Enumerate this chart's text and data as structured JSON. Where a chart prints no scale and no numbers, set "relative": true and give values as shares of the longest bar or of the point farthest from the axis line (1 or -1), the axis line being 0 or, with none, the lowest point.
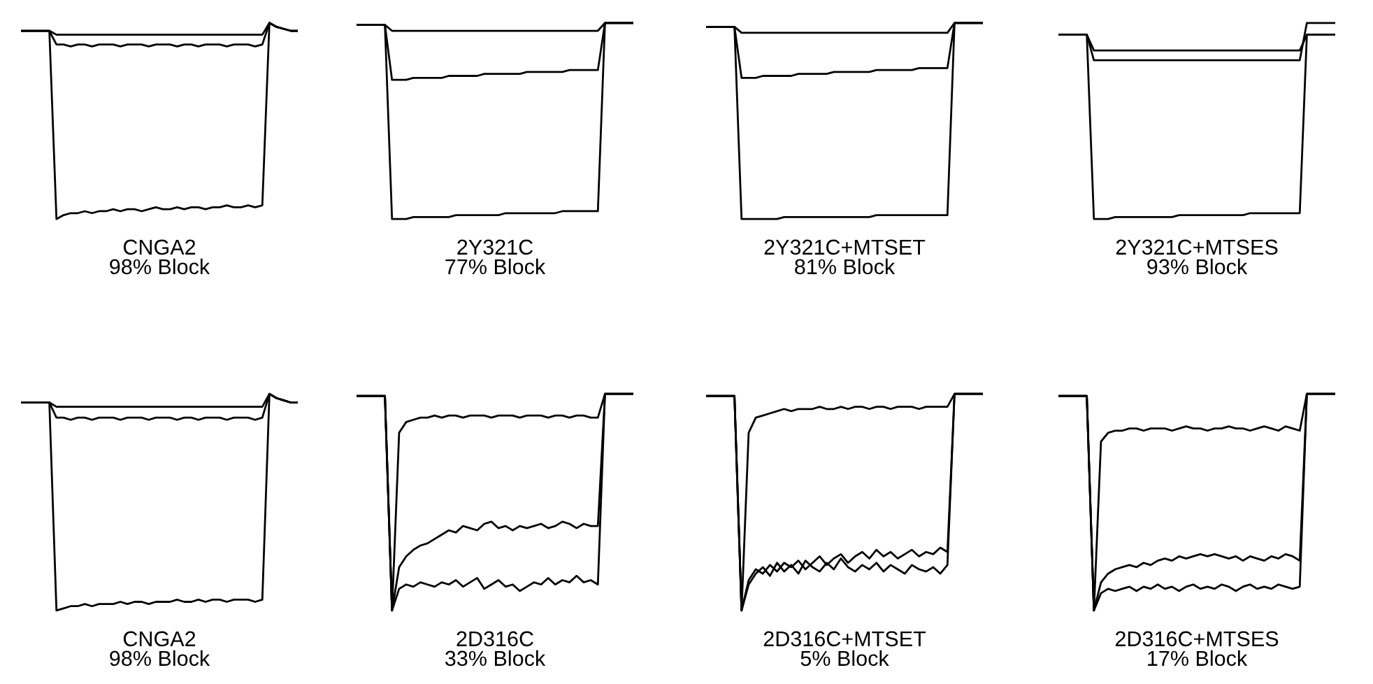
{
  "chart_data": [
    {
      "type": "line",
      "relative": true,
      "title": "CNGA2",
      "subtitle": "98% Block",
      "categories": [
        null,
        null,
        null,
        null,
        null,
        null,
        null,
        null,
        null,
        null,
        null,
        null,
        null,
        null,
        null,
        null,
        null,
        null,
        null,
        null,
        null,
        null,
        null,
        null,
        null,
        null,
        null,
        null,
        null,
        null,
        null,
        null,
        null,
        null,
        null,
        null,
        null,
        null,
        null,
        null
      ],
      "series": [
        {
          "color": "#000000",
          "values": [
            0.96,
            0.96,
            0.96,
            0.96,
            0.96,
            0.94,
            0.94,
            0.94,
            0.94,
            0.94,
            0.94,
            0.94,
            0.94,
            0.94,
            0.94,
            0.94,
            0.94,
            0.94,
            0.94,
            0.94,
            0.94,
            0.94,
            0.94,
            0.94,
            0.94,
            0.94,
            0.94,
            0.94,
            0.94,
            0.94,
            0.94,
            0.94,
            0.94,
            0.94,
            0.94,
            1.0,
            0.98,
            0.97,
            0.96,
            0.96
          ]
        },
        {
          "color": "#000000",
          "values": [
            0.96,
            0.96,
            0.96,
            0.96,
            0.96,
            0.89,
            0.89,
            0.88,
            0.89,
            0.89,
            0.88,
            0.89,
            0.89,
            0.89,
            0.88,
            0.89,
            0.89,
            0.89,
            0.88,
            0.89,
            0.89,
            0.89,
            0.88,
            0.89,
            0.89,
            0.88,
            0.89,
            0.89,
            0.89,
            0.88,
            0.89,
            0.89,
            0.89,
            0.88,
            0.89,
            1.0,
            0.98,
            0.97,
            0.96,
            0.96
          ]
        },
        {
          "color": "#000000",
          "values": [
            0.96,
            0.96,
            0.96,
            0.96,
            0.96,
            0.0,
            0.02,
            0.03,
            0.03,
            0.04,
            0.03,
            0.04,
            0.04,
            0.05,
            0.04,
            0.05,
            0.05,
            0.04,
            0.05,
            0.06,
            0.05,
            0.05,
            0.06,
            0.05,
            0.06,
            0.06,
            0.05,
            0.06,
            0.06,
            0.07,
            0.06,
            0.06,
            0.07,
            0.06,
            0.07,
            1.0,
            0.98,
            0.97,
            0.96,
            0.96
          ]
        }
      ]
    },
    {
      "type": "line",
      "relative": true,
      "title": "2Y321C",
      "subtitle": "77% Block",
      "categories": [
        null,
        null,
        null,
        null,
        null,
        null,
        null,
        null,
        null,
        null,
        null,
        null,
        null,
        null,
        null,
        null,
        null,
        null,
        null,
        null,
        null,
        null,
        null,
        null,
        null,
        null,
        null,
        null,
        null,
        null,
        null,
        null,
        null,
        null,
        null,
        null,
        null,
        null,
        null,
        null
      ],
      "series": [
        {
          "color": "#000000",
          "values": [
            0.99,
            0.99,
            0.99,
            0.99,
            0.99,
            0.96,
            0.96,
            0.96,
            0.96,
            0.96,
            0.96,
            0.96,
            0.96,
            0.96,
            0.96,
            0.96,
            0.96,
            0.96,
            0.96,
            0.96,
            0.96,
            0.96,
            0.96,
            0.96,
            0.96,
            0.96,
            0.96,
            0.96,
            0.96,
            0.96,
            0.96,
            0.96,
            0.96,
            0.96,
            0.96,
            1.0,
            1.0,
            1.0,
            1.0,
            1.0
          ]
        },
        {
          "color": "#000000",
          "values": [
            0.99,
            0.99,
            0.99,
            0.99,
            0.99,
            0.71,
            0.71,
            0.71,
            0.72,
            0.72,
            0.72,
            0.72,
            0.72,
            0.73,
            0.73,
            0.73,
            0.73,
            0.73,
            0.74,
            0.74,
            0.74,
            0.74,
            0.74,
            0.74,
            0.75,
            0.75,
            0.75,
            0.75,
            0.75,
            0.75,
            0.76,
            0.76,
            0.76,
            0.76,
            0.76,
            1.0,
            1.0,
            1.0,
            1.0,
            1.0
          ]
        },
        {
          "color": "#000000",
          "values": [
            0.99,
            0.99,
            0.99,
            0.99,
            0.99,
            0.0,
            0.0,
            0.0,
            0.01,
            0.01,
            0.01,
            0.01,
            0.01,
            0.01,
            0.02,
            0.02,
            0.02,
            0.02,
            0.02,
            0.02,
            0.02,
            0.03,
            0.03,
            0.03,
            0.03,
            0.03,
            0.03,
            0.03,
            0.03,
            0.04,
            0.04,
            0.04,
            0.04,
            0.04,
            0.04,
            1.0,
            1.0,
            1.0,
            1.0,
            1.0
          ]
        }
      ]
    },
    {
      "type": "line",
      "relative": true,
      "title": "2Y321C+MTSET",
      "subtitle": "81% Block",
      "categories": [
        null,
        null,
        null,
        null,
        null,
        null,
        null,
        null,
        null,
        null,
        null,
        null,
        null,
        null,
        null,
        null,
        null,
        null,
        null,
        null,
        null,
        null,
        null,
        null,
        null,
        null,
        null,
        null,
        null,
        null,
        null,
        null,
        null,
        null,
        null,
        null,
        null,
        null,
        null,
        null
      ],
      "series": [
        {
          "color": "#000000",
          "values": [
            0.98,
            0.98,
            0.98,
            0.98,
            0.98,
            0.95,
            0.95,
            0.95,
            0.95,
            0.95,
            0.95,
            0.95,
            0.95,
            0.95,
            0.95,
            0.95,
            0.95,
            0.95,
            0.95,
            0.95,
            0.95,
            0.95,
            0.95,
            0.95,
            0.95,
            0.95,
            0.95,
            0.95,
            0.95,
            0.95,
            0.95,
            0.95,
            0.95,
            0.95,
            0.95,
            1.0,
            1.0,
            1.0,
            1.0,
            1.0
          ]
        },
        {
          "color": "#000000",
          "values": [
            0.98,
            0.98,
            0.98,
            0.98,
            0.98,
            0.72,
            0.72,
            0.72,
            0.73,
            0.73,
            0.73,
            0.73,
            0.73,
            0.74,
            0.74,
            0.74,
            0.74,
            0.74,
            0.75,
            0.75,
            0.75,
            0.75,
            0.75,
            0.75,
            0.76,
            0.76,
            0.76,
            0.76,
            0.76,
            0.76,
            0.77,
            0.77,
            0.77,
            0.77,
            0.77,
            1.0,
            1.0,
            1.0,
            1.0,
            1.0
          ]
        },
        {
          "color": "#000000",
          "values": [
            0.98,
            0.98,
            0.98,
            0.98,
            0.98,
            0.0,
            0.0,
            0.0,
            0.0,
            0.0,
            0.0,
            0.01,
            0.01,
            0.01,
            0.01,
            0.01,
            0.01,
            0.01,
            0.01,
            0.01,
            0.01,
            0.01,
            0.01,
            0.01,
            0.02,
            0.02,
            0.02,
            0.02,
            0.02,
            0.02,
            0.02,
            0.02,
            0.02,
            0.02,
            0.02,
            1.0,
            1.0,
            1.0,
            1.0,
            1.0
          ]
        }
      ]
    },
    {
      "type": "line",
      "relative": true,
      "title": "2Y321C+MTSES",
      "subtitle": "93% Block",
      "categories": [
        null,
        null,
        null,
        null,
        null,
        null,
        null,
        null,
        null,
        null,
        null,
        null,
        null,
        null,
        null,
        null,
        null,
        null,
        null,
        null,
        null,
        null,
        null,
        null,
        null,
        null,
        null,
        null,
        null,
        null,
        null,
        null,
        null,
        null,
        null,
        null,
        null,
        null,
        null,
        null
      ],
      "series": [
        {
          "color": "#000000",
          "values": [
            0.94,
            0.94,
            0.94,
            0.94,
            0.94,
            0.86,
            0.86,
            0.86,
            0.86,
            0.86,
            0.86,
            0.86,
            0.86,
            0.86,
            0.86,
            0.86,
            0.86,
            0.86,
            0.86,
            0.86,
            0.86,
            0.86,
            0.86,
            0.86,
            0.86,
            0.86,
            0.86,
            0.86,
            0.86,
            0.86,
            0.86,
            0.86,
            0.86,
            0.86,
            0.86,
            0.94,
            0.94,
            0.94,
            0.94,
            0.94
          ]
        },
        {
          "color": "#000000",
          "values": [
            0.94,
            0.94,
            0.94,
            0.94,
            0.94,
            0.81,
            0.81,
            0.81,
            0.81,
            0.81,
            0.81,
            0.81,
            0.81,
            0.81,
            0.81,
            0.81,
            0.81,
            0.81,
            0.81,
            0.81,
            0.81,
            0.81,
            0.81,
            0.81,
            0.81,
            0.81,
            0.81,
            0.81,
            0.81,
            0.81,
            0.81,
            0.81,
            0.81,
            0.81,
            0.81,
            1.0,
            1.0,
            1.0,
            1.0,
            1.0
          ]
        },
        {
          "color": "#000000",
          "values": [
            0.94,
            0.94,
            0.94,
            0.94,
            0.94,
            0.0,
            0.0,
            0.0,
            0.01,
            0.01,
            0.01,
            0.01,
            0.01,
            0.01,
            0.01,
            0.01,
            0.01,
            0.02,
            0.02,
            0.02,
            0.02,
            0.02,
            0.02,
            0.02,
            0.02,
            0.02,
            0.02,
            0.03,
            0.03,
            0.03,
            0.03,
            0.03,
            0.03,
            0.03,
            0.03,
            0.94,
            0.94,
            0.94,
            0.94,
            0.94
          ]
        }
      ]
    },
    {
      "type": "line",
      "relative": true,
      "title": "CNGA2",
      "subtitle": "98% Block",
      "categories": [
        null,
        null,
        null,
        null,
        null,
        null,
        null,
        null,
        null,
        null,
        null,
        null,
        null,
        null,
        null,
        null,
        null,
        null,
        null,
        null,
        null,
        null,
        null,
        null,
        null,
        null,
        null,
        null,
        null,
        null,
        null,
        null,
        null,
        null,
        null,
        null,
        null,
        null,
        null,
        null
      ],
      "series": [
        {
          "color": "#000000",
          "values": [
            0.96,
            0.96,
            0.96,
            0.96,
            0.96,
            0.94,
            0.94,
            0.94,
            0.94,
            0.94,
            0.94,
            0.94,
            0.94,
            0.94,
            0.94,
            0.94,
            0.94,
            0.94,
            0.94,
            0.94,
            0.94,
            0.94,
            0.94,
            0.94,
            0.94,
            0.94,
            0.94,
            0.94,
            0.94,
            0.94,
            0.94,
            0.94,
            0.94,
            0.94,
            0.94,
            1.0,
            0.98,
            0.97,
            0.96,
            0.96
          ]
        },
        {
          "color": "#000000",
          "values": [
            0.96,
            0.96,
            0.96,
            0.96,
            0.96,
            0.89,
            0.89,
            0.88,
            0.89,
            0.89,
            0.88,
            0.89,
            0.89,
            0.89,
            0.88,
            0.89,
            0.89,
            0.89,
            0.88,
            0.89,
            0.89,
            0.89,
            0.88,
            0.89,
            0.89,
            0.88,
            0.89,
            0.89,
            0.89,
            0.88,
            0.89,
            0.89,
            0.89,
            0.88,
            0.89,
            1.0,
            0.98,
            0.97,
            0.96,
            0.96
          ]
        },
        {
          "color": "#000000",
          "values": [
            0.96,
            0.96,
            0.96,
            0.96,
            0.96,
            0.0,
            0.01,
            0.02,
            0.02,
            0.03,
            0.02,
            0.03,
            0.03,
            0.03,
            0.04,
            0.03,
            0.04,
            0.04,
            0.03,
            0.04,
            0.04,
            0.04,
            0.05,
            0.04,
            0.04,
            0.05,
            0.04,
            0.05,
            0.05,
            0.04,
            0.05,
            0.05,
            0.05,
            0.04,
            0.05,
            1.0,
            0.98,
            0.97,
            0.96,
            0.96
          ]
        }
      ]
    },
    {
      "type": "line",
      "relative": true,
      "title": "2D316C",
      "subtitle": "33% Block",
      "categories": [
        null,
        null,
        null,
        null,
        null,
        null,
        null,
        null,
        null,
        null,
        null,
        null,
        null,
        null,
        null,
        null,
        null,
        null,
        null,
        null,
        null,
        null,
        null,
        null,
        null,
        null,
        null,
        null,
        null,
        null,
        null,
        null,
        null,
        null,
        null,
        null,
        null,
        null,
        null,
        null
      ],
      "series": [
        {
          "color": "#000000",
          "values": [
            0.99,
            0.99,
            0.99,
            0.99,
            0.99,
            0.0,
            0.82,
            0.87,
            0.88,
            0.89,
            0.89,
            0.9,
            0.89,
            0.9,
            0.9,
            0.89,
            0.9,
            0.9,
            0.9,
            0.89,
            0.9,
            0.9,
            0.9,
            0.89,
            0.9,
            0.9,
            0.9,
            0.89,
            0.9,
            0.9,
            0.89,
            0.9,
            0.9,
            0.89,
            0.89,
            1.0,
            1.0,
            1.0,
            1.0,
            1.0
          ]
        },
        {
          "color": "#000000",
          "values": [
            0.99,
            0.99,
            0.99,
            0.99,
            0.99,
            0.0,
            0.2,
            0.25,
            0.28,
            0.3,
            0.31,
            0.33,
            0.35,
            0.37,
            0.36,
            0.39,
            0.38,
            0.37,
            0.4,
            0.41,
            0.38,
            0.39,
            0.37,
            0.39,
            0.38,
            0.39,
            0.4,
            0.38,
            0.39,
            0.41,
            0.4,
            0.38,
            0.4,
            0.39,
            0.39,
            1.0,
            1.0,
            1.0,
            1.0,
            1.0
          ]
        },
        {
          "color": "#000000",
          "values": [
            0.99,
            0.99,
            0.99,
            0.99,
            0.99,
            0.0,
            0.1,
            0.12,
            0.11,
            0.13,
            0.12,
            0.11,
            0.13,
            0.12,
            0.14,
            0.11,
            0.13,
            0.15,
            0.1,
            0.12,
            0.14,
            0.11,
            0.12,
            0.09,
            0.11,
            0.13,
            0.12,
            0.15,
            0.12,
            0.14,
            0.13,
            0.16,
            0.13,
            0.14,
            0.12,
            1.0,
            1.0,
            1.0,
            1.0,
            1.0
          ]
        }
      ]
    },
    {
      "type": "line",
      "relative": true,
      "title": "2D316C+MTSET",
      "subtitle": "5% Block",
      "categories": [
        null,
        null,
        null,
        null,
        null,
        null,
        null,
        null,
        null,
        null,
        null,
        null,
        null,
        null,
        null,
        null,
        null,
        null,
        null,
        null,
        null,
        null,
        null,
        null,
        null,
        null,
        null,
        null,
        null,
        null,
        null,
        null,
        null,
        null,
        null,
        null,
        null,
        null,
        null,
        null
      ],
      "series": [
        {
          "color": "#000000",
          "values": [
            0.99,
            0.99,
            0.99,
            0.99,
            0.99,
            0.0,
            0.82,
            0.89,
            0.9,
            0.91,
            0.92,
            0.93,
            0.92,
            0.93,
            0.93,
            0.93,
            0.94,
            0.93,
            0.93,
            0.94,
            0.93,
            0.94,
            0.94,
            0.93,
            0.94,
            0.94,
            0.93,
            0.94,
            0.94,
            0.94,
            0.93,
            0.94,
            0.94,
            0.94,
            0.94,
            1.0,
            1.0,
            1.0,
            1.0,
            1.0
          ]
        },
        {
          "color": "#000000",
          "values": [
            0.99,
            0.99,
            0.99,
            0.99,
            0.99,
            0.0,
            0.14,
            0.19,
            0.17,
            0.21,
            0.18,
            0.22,
            0.2,
            0.23,
            0.19,
            0.22,
            0.25,
            0.21,
            0.24,
            0.26,
            0.22,
            0.25,
            0.27,
            0.24,
            0.28,
            0.25,
            0.27,
            0.24,
            0.26,
            0.28,
            0.25,
            0.27,
            0.26,
            0.29,
            0.27,
            1.0,
            1.0,
            1.0,
            1.0,
            1.0
          ]
        },
        {
          "color": "#000000",
          "values": [
            0.99,
            0.99,
            0.99,
            0.99,
            0.99,
            0.0,
            0.12,
            0.17,
            0.2,
            0.16,
            0.22,
            0.18,
            0.21,
            0.17,
            0.23,
            0.2,
            0.18,
            0.22,
            0.19,
            0.24,
            0.2,
            0.18,
            0.21,
            0.19,
            0.22,
            0.18,
            0.21,
            0.19,
            0.17,
            0.21,
            0.19,
            0.18,
            0.2,
            0.17,
            0.21,
            1.0,
            1.0,
            1.0,
            1.0,
            1.0
          ]
        }
      ]
    },
    {
      "type": "line",
      "relative": true,
      "title": "2D316C+MTSES",
      "subtitle": "17% Block",
      "categories": [
        null,
        null,
        null,
        null,
        null,
        null,
        null,
        null,
        null,
        null,
        null,
        null,
        null,
        null,
        null,
        null,
        null,
        null,
        null,
        null,
        null,
        null,
        null,
        null,
        null,
        null,
        null,
        null,
        null,
        null,
        null,
        null,
        null,
        null,
        null,
        null,
        null,
        null,
        null,
        null
      ],
      "series": [
        {
          "color": "#000000",
          "values": [
            0.99,
            0.99,
            0.99,
            0.99,
            0.99,
            0.0,
            0.78,
            0.82,
            0.83,
            0.83,
            0.84,
            0.84,
            0.83,
            0.84,
            0.84,
            0.84,
            0.83,
            0.84,
            0.85,
            0.84,
            0.84,
            0.83,
            0.84,
            0.84,
            0.85,
            0.84,
            0.84,
            0.83,
            0.84,
            0.85,
            0.84,
            0.83,
            0.85,
            0.84,
            0.83,
            1.0,
            1.0,
            1.0,
            1.0,
            1.0
          ]
        },
        {
          "color": "#000000",
          "values": [
            0.99,
            0.99,
            0.99,
            0.99,
            0.99,
            0.0,
            0.13,
            0.17,
            0.19,
            0.2,
            0.21,
            0.2,
            0.22,
            0.21,
            0.23,
            0.24,
            0.23,
            0.25,
            0.24,
            0.25,
            0.26,
            0.25,
            0.26,
            0.25,
            0.24,
            0.25,
            0.23,
            0.25,
            0.24,
            0.23,
            0.25,
            0.24,
            0.26,
            0.25,
            0.23,
            1.0,
            1.0,
            1.0,
            1.0,
            1.0
          ]
        },
        {
          "color": "#000000",
          "values": [
            0.99,
            0.99,
            0.99,
            0.99,
            0.99,
            0.0,
            0.08,
            0.1,
            0.09,
            0.1,
            0.11,
            0.09,
            0.11,
            0.1,
            0.12,
            0.1,
            0.11,
            0.09,
            0.11,
            0.12,
            0.1,
            0.11,
            0.1,
            0.12,
            0.11,
            0.09,
            0.11,
            0.12,
            0.1,
            0.11,
            0.1,
            0.12,
            0.11,
            0.1,
            0.11,
            1.0,
            1.0,
            1.0,
            1.0,
            1.0
          ]
        }
      ]
    }
  ]
}
